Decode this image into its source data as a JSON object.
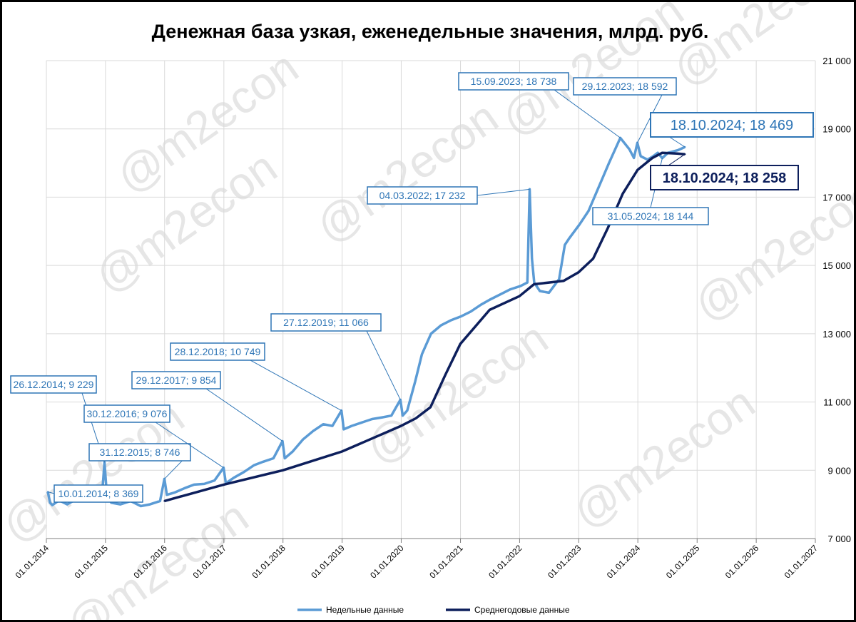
{
  "watermark": "@m2econ",
  "colors": {
    "weekly": "#5b9bd5",
    "annual": "#0d1f5c",
    "annotation": "#2e75b6",
    "grid": "#d9d9d9"
  },
  "chart_data": {
    "type": "line",
    "title": "Денежная база узкая, еженедельные значения, млрд. руб.",
    "ylim": [
      7000,
      21000
    ],
    "yticks": [
      7000,
      9000,
      11000,
      13000,
      15000,
      17000,
      19000,
      21000
    ],
    "ytick_labels": [
      "7 000",
      "9 000",
      "11 000",
      "13 000",
      "15 000",
      "17 000",
      "19 000",
      "21 000"
    ],
    "xticks": [
      "01.01.2014",
      "01.01.2015",
      "01.01.2016",
      "01.01.2017",
      "01.01.2018",
      "01.01.2019",
      "01.01.2020",
      "01.01.2021",
      "01.01.2022",
      "01.01.2023",
      "01.01.2024",
      "01.01.2025",
      "01.01.2026",
      "01.01.2027"
    ],
    "y_axis_position": "right",
    "grid": true,
    "legend_position": "bottom",
    "series": [
      {
        "name": "Недельные данные",
        "color": "#5b9bd5",
        "points": [
          [
            "10.01.2014",
            8369
          ],
          [
            "24.01.2014",
            8050
          ],
          [
            "07.02.2014",
            7980
          ],
          [
            "21.03.2014",
            8120
          ],
          [
            "09.05.2014",
            8000
          ],
          [
            "04.07.2014",
            8150
          ],
          [
            "05.09.2014",
            8130
          ],
          [
            "07.11.2014",
            8220
          ],
          [
            "12.12.2014",
            8350
          ],
          [
            "26.12.2014",
            9229
          ],
          [
            "09.01.2015",
            8300
          ],
          [
            "06.02.2015",
            8050
          ],
          [
            "03.04.2015",
            8000
          ],
          [
            "05.06.2015",
            8100
          ],
          [
            "07.08.2015",
            7950
          ],
          [
            "02.10.2015",
            8000
          ],
          [
            "04.12.2015",
            8100
          ],
          [
            "31.12.2015",
            8746
          ],
          [
            "15.01.2016",
            8280
          ],
          [
            "04.03.2016",
            8350
          ],
          [
            "06.05.2016",
            8480
          ],
          [
            "01.07.2016",
            8580
          ],
          [
            "02.09.2016",
            8600
          ],
          [
            "04.11.2016",
            8700
          ],
          [
            "30.12.2016",
            9076
          ],
          [
            "13.01.2017",
            8620
          ],
          [
            "03.03.2017",
            8780
          ],
          [
            "05.05.2017",
            8950
          ],
          [
            "07.07.2017",
            9150
          ],
          [
            "01.09.2017",
            9250
          ],
          [
            "03.11.2017",
            9350
          ],
          [
            "29.12.2017",
            9854
          ],
          [
            "12.01.2018",
            9350
          ],
          [
            "02.03.2018",
            9550
          ],
          [
            "04.05.2018",
            9900
          ],
          [
            "06.07.2018",
            10150
          ],
          [
            "07.09.2018",
            10350
          ],
          [
            "02.11.2018",
            10300
          ],
          [
            "28.12.2018",
            10749
          ],
          [
            "11.01.2019",
            10200
          ],
          [
            "01.03.2019",
            10300
          ],
          [
            "03.05.2019",
            10400
          ],
          [
            "05.07.2019",
            10500
          ],
          [
            "06.09.2019",
            10550
          ],
          [
            "01.11.2019",
            10600
          ],
          [
            "27.12.2019",
            11066
          ],
          [
            "10.01.2020",
            10600
          ],
          [
            "07.02.2020",
            10750
          ],
          [
            "27.03.2020",
            11600
          ],
          [
            "08.05.2020",
            12400
          ],
          [
            "03.07.2020",
            13000
          ],
          [
            "04.09.2020",
            13250
          ],
          [
            "06.11.2020",
            13400
          ],
          [
            "01.01.2021",
            13500
          ],
          [
            "05.03.2021",
            13650
          ],
          [
            "07.05.2021",
            13850
          ],
          [
            "02.07.2021",
            14000
          ],
          [
            "03.09.2021",
            14150
          ],
          [
            "05.11.2021",
            14300
          ],
          [
            "07.01.2022",
            14400
          ],
          [
            "18.02.2022",
            14500
          ],
          [
            "04.03.2022",
            17232
          ],
          [
            "18.03.2022",
            15200
          ],
          [
            "01.04.2022",
            14500
          ],
          [
            "06.05.2022",
            14250
          ],
          [
            "01.07.2022",
            14200
          ],
          [
            "02.09.2022",
            14600
          ],
          [
            "07.10.2022",
            15600
          ],
          [
            "04.11.2022",
            15800
          ],
          [
            "06.01.2023",
            16200
          ],
          [
            "03.03.2023",
            16600
          ],
          [
            "05.05.2023",
            17300
          ],
          [
            "07.07.2023",
            18000
          ],
          [
            "15.09.2023",
            18738
          ],
          [
            "10.11.2023",
            18400
          ],
          [
            "08.12.2023",
            18150
          ],
          [
            "29.12.2023",
            18592
          ],
          [
            "19.01.2024",
            18200
          ],
          [
            "01.03.2024",
            18100
          ],
          [
            "05.04.2024",
            18200
          ],
          [
            "03.05.2024",
            18300
          ],
          [
            "31.05.2024",
            18144
          ],
          [
            "05.07.2024",
            18300
          ],
          [
            "06.09.2024",
            18380
          ],
          [
            "18.10.2024",
            18469
          ]
        ]
      },
      {
        "name": "Среднегодовые данные",
        "color": "#0d1f5c",
        "points": [
          [
            "31.12.2015",
            8100
          ],
          [
            "31.12.2016",
            8580
          ],
          [
            "31.12.2017",
            9000
          ],
          [
            "31.12.2018",
            9550
          ],
          [
            "31.12.2019",
            10300
          ],
          [
            "31.03.2020",
            10520
          ],
          [
            "30.06.2020",
            10850
          ],
          [
            "30.09.2020",
            11800
          ],
          [
            "31.12.2020",
            12700
          ],
          [
            "30.06.2021",
            13700
          ],
          [
            "31.12.2021",
            14100
          ],
          [
            "31.03.2022",
            14450
          ],
          [
            "30.06.2022",
            14500
          ],
          [
            "30.09.2022",
            14550
          ],
          [
            "31.12.2022",
            14800
          ],
          [
            "31.03.2023",
            15200
          ],
          [
            "30.06.2023",
            16100
          ],
          [
            "30.09.2023",
            17100
          ],
          [
            "31.12.2023",
            17800
          ],
          [
            "31.03.2024",
            18150
          ],
          [
            "31.05.2024",
            18300
          ],
          [
            "30.08.2024",
            18280
          ],
          [
            "18.10.2024",
            18258
          ]
        ]
      }
    ],
    "annotations": [
      {
        "label": "10.01.2014; 8 369",
        "date": "10.01.2014",
        "value": 8369
      },
      {
        "label": "26.12.2014; 9 229",
        "date": "26.12.2014",
        "value": 9229
      },
      {
        "label": "31.12.2015; 8 746",
        "date": "31.12.2015",
        "value": 8746
      },
      {
        "label": "30.12.2016; 9 076",
        "date": "30.12.2016",
        "value": 9076
      },
      {
        "label": "29.12.2017; 9 854",
        "date": "29.12.2017",
        "value": 9854
      },
      {
        "label": "28.12.2018; 10 749",
        "date": "28.12.2018",
        "value": 10749
      },
      {
        "label": "27.12.2019; 11 066",
        "date": "27.12.2019",
        "value": 11066
      },
      {
        "label": "04.03.2022; 17 232",
        "date": "04.03.2022",
        "value": 17232
      },
      {
        "label": "15.09.2023; 18 738",
        "date": "15.09.2023",
        "value": 18738
      },
      {
        "label": "29.12.2023; 18 592",
        "date": "29.12.2023",
        "value": 18592
      },
      {
        "label": "31.05.2024; 18 144",
        "date": "31.05.2024",
        "value": 18144
      },
      {
        "label": "18.10.2024; 18 469",
        "date": "18.10.2024",
        "value": 18469,
        "emphasis": "weekly"
      },
      {
        "label": "18.10.2024; 18 258",
        "date": "18.10.2024",
        "value": 18258,
        "emphasis": "annual"
      }
    ]
  }
}
